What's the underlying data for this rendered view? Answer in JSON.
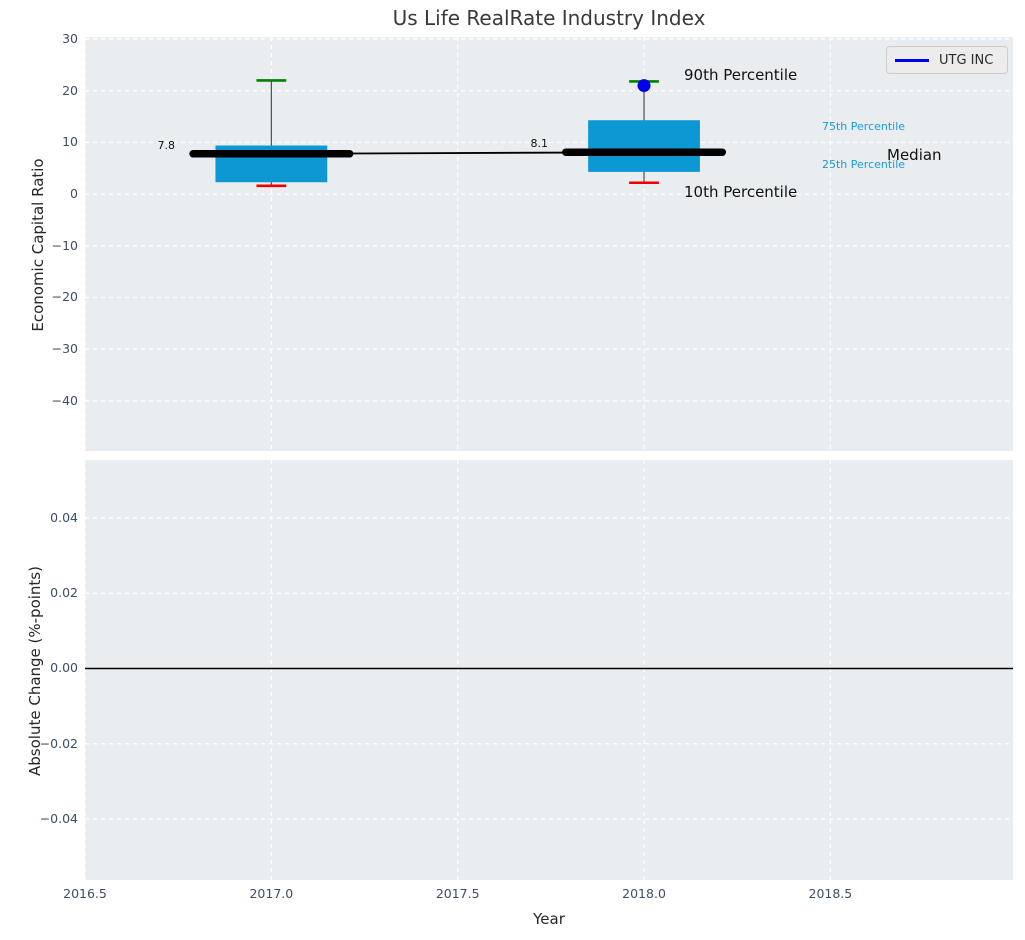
{
  "title": "Us Life RealRate Industry Index",
  "legend": {
    "label": "UTG INC",
    "line_color": "#0000ee"
  },
  "annotations": {
    "p90": "90th Percentile",
    "p10": "10th Percentile",
    "p75": "75th Percentile",
    "median": "Median",
    "p25": "25th Percentile"
  },
  "colors": {
    "panel_background": "#e9edef",
    "gridline": "#ffffff",
    "box_fill": "#0d98d4",
    "whisker_line": "#4d4d4d",
    "cap_high": "#008000",
    "cap_low": "#ee0000",
    "median_line": "#000000",
    "company_point": "#0000ee",
    "zero_line": "#000000",
    "tick_label": "#3d4e66",
    "blue_annotation": "#1a9cd8"
  },
  "chart_data": {
    "type": "boxplot-timeseries",
    "title": "Us Life RealRate Industry Index",
    "xlabel": "Year",
    "xlim": [
      2016.5,
      2018.99
    ],
    "xticks": [
      2016.5,
      2017.0,
      2017.5,
      2018.0,
      2018.5
    ],
    "xtick_labels": [
      "2016.5",
      "2017.0",
      "2017.5",
      "2018.0",
      "2018.5"
    ],
    "grid": "white-dashed",
    "legend_position": "upper right",
    "panels": [
      {
        "ylabel": "Economic Capital Ratio",
        "ylim": [
          -49.7,
          30.4
        ],
        "yticks": [
          30,
          20,
          10,
          0,
          -10,
          -20,
          -30,
          -40
        ],
        "ytick_labels": [
          "30",
          "20",
          "10",
          "0",
          "−10",
          "−20",
          "−30",
          "−40"
        ],
        "boxes": [
          {
            "x": 2017,
            "p10": 1.6,
            "p25": 2.3,
            "median": 7.8,
            "p75": 9.4,
            "p90": 22.0,
            "median_label": "7.8"
          },
          {
            "x": 2018,
            "p10": 2.2,
            "p25": 4.3,
            "median": 8.1,
            "p75": 14.3,
            "p90": 21.8,
            "median_label": "8.1"
          }
        ],
        "median_line": [
          [
            2017,
            7.8
          ],
          [
            2018,
            8.1
          ]
        ],
        "company_point": {
          "name": "UTG INC",
          "x": 2018,
          "y": 21.0
        }
      },
      {
        "ylabel": "Absolute Change (%-points)",
        "ylim": [
          -0.0562,
          0.0554
        ],
        "yticks": [
          0.04,
          0.02,
          0.0,
          -0.02,
          -0.04
        ],
        "ytick_labels": [
          "0.04",
          "0.02",
          "0.00",
          "−0.02",
          "−0.04"
        ],
        "zero_line": 0.0
      }
    ]
  }
}
